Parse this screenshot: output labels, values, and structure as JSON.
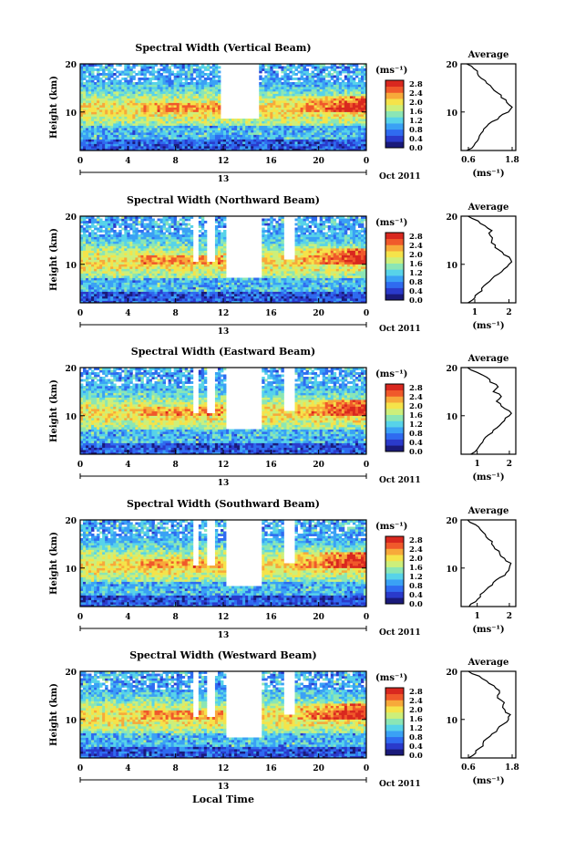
{
  "figure": {
    "xlabel": "Local Time",
    "date_label": "Oct 2011",
    "day_label": "13",
    "colorbar_unit": "(ms⁻¹)",
    "average_title": "Average",
    "average_unit": "(ms⁻¹)"
  },
  "colors": {
    "colormap": [
      "#1a1a7a",
      "#2a3acb",
      "#2f6bf0",
      "#3aa1f5",
      "#57d3e9",
      "#8be6b5",
      "#cdef7a",
      "#f5e34a",
      "#f7a93a",
      "#f0592b",
      "#d9281f"
    ],
    "background": "#ffffff"
  },
  "chart_data": [
    {
      "type": "heatmap",
      "title": "Spectral Width (Vertical Beam)",
      "xlabel": "Local Time",
      "ylabel": "Height (km)",
      "xlim": [
        0,
        24
      ],
      "ylim": [
        2,
        20
      ],
      "xticks": [
        "0",
        "4",
        "8",
        "12",
        "16",
        "20",
        "0"
      ],
      "yticks": [
        "20",
        "10"
      ],
      "colorbar": {
        "ticks": [
          "2.8",
          "2.4",
          "2.0",
          "1.6",
          "1.2",
          "0.8",
          "0.4",
          "0.0"
        ],
        "range": [
          0,
          2.8
        ]
      },
      "gaps": [
        [
          11.8,
          15.0,
          8.5,
          20
        ]
      ],
      "average": {
        "xticks": [
          "0.6",
          "1.8"
        ],
        "xlim": [
          0.4,
          1.9
        ],
        "height": [
          2,
          3,
          4,
          5,
          6,
          7,
          8,
          9,
          10,
          11,
          12,
          13,
          14,
          15,
          16,
          17,
          18,
          19,
          20
        ],
        "value": [
          0.55,
          0.75,
          0.85,
          0.9,
          1.0,
          1.1,
          1.25,
          1.45,
          1.7,
          1.8,
          1.65,
          1.5,
          1.4,
          1.25,
          1.1,
          0.95,
          0.85,
          0.75,
          0.55
        ]
      }
    },
    {
      "type": "heatmap",
      "title": "Spectral Width (Northward Beam)",
      "xlabel": "Local Time",
      "ylabel": "Height (km)",
      "xlim": [
        0,
        24
      ],
      "ylim": [
        2,
        20
      ],
      "xticks": [
        "0",
        "4",
        "8",
        "12",
        "16",
        "20",
        "0"
      ],
      "yticks": [
        "20",
        "10"
      ],
      "colorbar": {
        "ticks": [
          "2.8",
          "2.4",
          "2.0",
          "1.6",
          "1.2",
          "0.8",
          "0.4",
          "0.0"
        ],
        "range": [
          0,
          2.8
        ]
      },
      "gaps": [
        [
          9.5,
          10.0,
          10.5,
          20
        ],
        [
          10.7,
          11.2,
          10.5,
          20
        ],
        [
          12.3,
          15.2,
          7.0,
          20
        ],
        [
          17.0,
          18.0,
          11.0,
          20
        ]
      ],
      "average": {
        "xticks": [
          "1",
          "2"
        ],
        "xlim": [
          0.6,
          2.2
        ],
        "height": [
          2,
          3,
          4,
          5,
          6,
          7,
          8,
          9,
          10,
          11,
          12,
          13,
          14,
          15,
          16,
          17,
          18,
          19,
          20
        ],
        "value": [
          0.8,
          1.0,
          1.1,
          1.2,
          1.35,
          1.5,
          1.7,
          1.85,
          2.0,
          2.05,
          1.85,
          1.7,
          1.6,
          1.5,
          1.45,
          1.5,
          1.3,
          1.1,
          0.8
        ]
      }
    },
    {
      "type": "heatmap",
      "title": "Spectral Width (Eastward Beam)",
      "xlabel": "Local Time",
      "ylabel": "Height (km)",
      "xlim": [
        0,
        24
      ],
      "ylim": [
        2,
        20
      ],
      "xticks": [
        "0",
        "4",
        "8",
        "12",
        "16",
        "20",
        "0"
      ],
      "yticks": [
        "20",
        "10"
      ],
      "colorbar": {
        "ticks": [
          "2.8",
          "2.4",
          "2.0",
          "1.6",
          "1.2",
          "0.8",
          "0.4",
          "0.0"
        ],
        "range": [
          0,
          2.8
        ]
      },
      "gaps": [
        [
          9.5,
          10.0,
          10.5,
          20
        ],
        [
          10.7,
          11.2,
          10.5,
          20
        ],
        [
          12.3,
          15.2,
          7.0,
          20
        ],
        [
          17.0,
          18.0,
          11.0,
          20
        ]
      ],
      "average": {
        "xticks": [
          "1",
          "2"
        ],
        "xlim": [
          0.5,
          2.2
        ],
        "height": [
          2,
          3,
          4,
          5,
          6,
          7,
          8,
          9,
          10,
          11,
          12,
          13,
          14,
          15,
          16,
          17,
          18,
          19,
          20
        ],
        "value": [
          0.8,
          1.0,
          1.1,
          1.2,
          1.35,
          1.5,
          1.7,
          1.85,
          2.0,
          2.0,
          1.75,
          1.6,
          1.75,
          1.5,
          1.65,
          1.4,
          1.3,
          1.0,
          0.7
        ]
      }
    },
    {
      "type": "heatmap",
      "title": "Spectral Width (Southward Beam)",
      "xlabel": "Local Time",
      "ylabel": "Height (km)",
      "xlim": [
        0,
        24
      ],
      "ylim": [
        2,
        20
      ],
      "xticks": [
        "0",
        "4",
        "8",
        "12",
        "16",
        "20",
        "0"
      ],
      "yticks": [
        "20",
        "10"
      ],
      "colorbar": {
        "ticks": [
          "2.8",
          "2.4",
          "2.0",
          "1.6",
          "1.2",
          "0.8",
          "0.4",
          "0.0"
        ],
        "range": [
          0,
          2.8
        ]
      },
      "gaps": [
        [
          9.5,
          10.0,
          10.5,
          20
        ],
        [
          10.7,
          11.2,
          10.5,
          20
        ],
        [
          12.3,
          15.2,
          6.5,
          20
        ],
        [
          17.0,
          18.0,
          11.0,
          20
        ]
      ],
      "average": {
        "xticks": [
          "1",
          "2"
        ],
        "xlim": [
          0.5,
          2.2
        ],
        "height": [
          2,
          3,
          4,
          5,
          6,
          7,
          8,
          9,
          10,
          11,
          12,
          13,
          14,
          15,
          16,
          17,
          18,
          19,
          20
        ],
        "value": [
          0.75,
          0.95,
          1.1,
          1.2,
          1.35,
          1.5,
          1.7,
          1.9,
          2.0,
          2.05,
          1.85,
          1.7,
          1.55,
          1.45,
          1.35,
          1.25,
          1.1,
          0.95,
          0.7
        ]
      }
    },
    {
      "type": "heatmap",
      "title": "Spectral Width (Westward Beam)",
      "xlabel": "Local Time",
      "ylabel": "Height (km)",
      "xlim": [
        0,
        24
      ],
      "ylim": [
        2,
        20
      ],
      "xticks": [
        "0",
        "4",
        "8",
        "12",
        "16",
        "20",
        "0"
      ],
      "yticks": [
        "20",
        "10"
      ],
      "colorbar": {
        "ticks": [
          "2.8",
          "2.4",
          "2.0",
          "1.6",
          "1.2",
          "0.8",
          "0.4",
          "0.0"
        ],
        "range": [
          0,
          2.8
        ]
      },
      "gaps": [
        [
          9.5,
          10.0,
          10.5,
          20
        ],
        [
          10.7,
          11.2,
          10.5,
          20
        ],
        [
          12.3,
          15.2,
          6.5,
          20
        ],
        [
          17.0,
          18.0,
          11.0,
          20
        ]
      ],
      "average": {
        "xticks": [
          "0.6",
          "1.8"
        ],
        "xlim": [
          0.4,
          1.9
        ],
        "height": [
          2,
          3,
          4,
          5,
          6,
          7,
          8,
          9,
          10,
          11,
          12,
          13,
          14,
          15,
          16,
          17,
          18,
          19,
          20
        ],
        "value": [
          0.6,
          0.8,
          0.9,
          1.0,
          1.1,
          1.25,
          1.4,
          1.55,
          1.7,
          1.75,
          1.6,
          1.55,
          1.5,
          1.4,
          1.45,
          1.3,
          1.1,
          0.9,
          0.6
        ]
      }
    }
  ]
}
